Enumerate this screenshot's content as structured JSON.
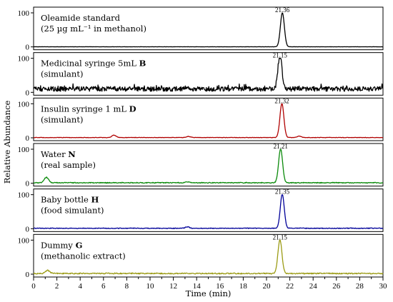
{
  "chart_data": {
    "type": "line",
    "xlabel": "Time (min)",
    "ylabel": "Relative Abundance",
    "xlim": [
      0,
      30
    ],
    "x_ticks": [
      0,
      2,
      4,
      6,
      8,
      10,
      12,
      14,
      16,
      18,
      20,
      22,
      24,
      26,
      28,
      30
    ],
    "ylim": [
      0,
      100
    ],
    "y_ticks": [
      0,
      100
    ],
    "series": [
      {
        "label_line1": "Oleamide standard",
        "label_line2": "(25 µg mL⁻¹ in methanol)",
        "bold_id": "",
        "color": "#000000",
        "peak_time": 21.36,
        "peak_label": "21.36",
        "peak_value": 100,
        "baseline_noise": 0.6,
        "small_peaks": []
      },
      {
        "label_line1": "Medicinal syringe 5mL",
        "label_line2": "(simulant)",
        "bold_id": "B",
        "color": "#000000",
        "peak_time": 21.15,
        "peak_label": "21.15",
        "peak_value": 100,
        "baseline_noise": 14,
        "small_peaks": []
      },
      {
        "label_line1": "Insulin syringe 1 mL",
        "label_line2": "(simulant)",
        "bold_id": "D",
        "color": "#b00000",
        "peak_time": 21.32,
        "peak_label": "21.32",
        "peak_value": 100,
        "baseline_noise": 1.5,
        "small_peaks": [
          [
            6.9,
            7
          ],
          [
            13.3,
            3
          ],
          [
            22.8,
            4
          ]
        ]
      },
      {
        "label_line1": "Water",
        "label_line2": "(real sample)",
        "bold_id": "N",
        "color": "#0a8a0a",
        "peak_time": 21.21,
        "peak_label": "21.21",
        "peak_value": 100,
        "baseline_noise": 3,
        "small_peaks": [
          [
            1.1,
            16
          ],
          [
            13.2,
            3
          ]
        ]
      },
      {
        "label_line1": "Baby bottle",
        "label_line2": "(food simulant)",
        "bold_id": "H",
        "color": "#000099",
        "peak_time": 21.35,
        "peak_label": "21.35",
        "peak_value": 100,
        "baseline_noise": 2.5,
        "small_peaks": [
          [
            13.2,
            4
          ]
        ]
      },
      {
        "label_line1": "Dummy",
        "label_line2": "(methanolic extract)",
        "bold_id": "G",
        "color": "#9b9b14",
        "peak_time": 21.15,
        "peak_label": "21.15",
        "peak_value": 100,
        "baseline_noise": 4,
        "small_peaks": [
          [
            1.2,
            9
          ]
        ]
      }
    ]
  }
}
